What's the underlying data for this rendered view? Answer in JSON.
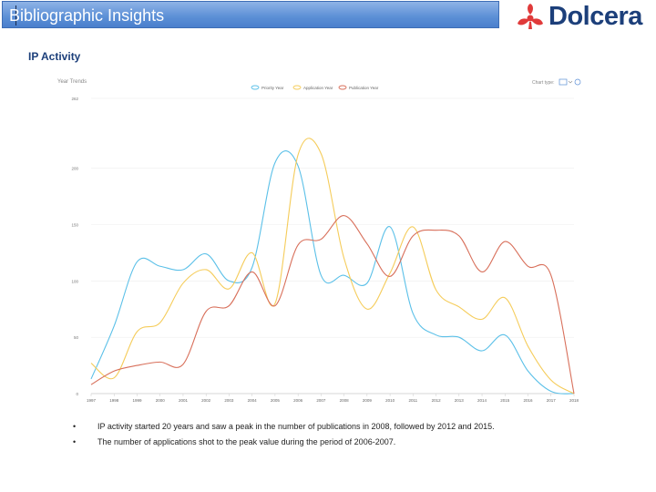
{
  "header": {
    "title": "Bibliographic Insights"
  },
  "logo": {
    "word": "Dolcera",
    "icon": "dolcera-logo-icon",
    "color": "#e03a3a"
  },
  "section": {
    "title": "IP Activity"
  },
  "chart_data": {
    "type": "line",
    "title": "Year Trends",
    "chart_type_label": "Chart type:",
    "x": [
      "1997",
      "1998",
      "1999",
      "2000",
      "2001",
      "2002",
      "2003",
      "2004",
      "2005",
      "2006",
      "2007",
      "2008",
      "2009",
      "2010",
      "2011",
      "2012",
      "2013",
      "2014",
      "2015",
      "2016",
      "2017",
      "2018"
    ],
    "ylim": [
      0,
      262
    ],
    "yticks": [
      0,
      50,
      100,
      150,
      200,
      262
    ],
    "grid": true,
    "legend_placement": "top-center",
    "series": [
      {
        "name": "Priority Year",
        "color": "#5bc0e8",
        "values": [
          13,
          60,
          117,
          113,
          110,
          124,
          100,
          112,
          205,
          202,
          105,
          105,
          98,
          148,
          71,
          52,
          50,
          38,
          52,
          20,
          2,
          0
        ]
      },
      {
        "name": "Application Year",
        "color": "#f5cc5a",
        "values": [
          27,
          14,
          55,
          63,
          98,
          110,
          93,
          125,
          80,
          212,
          213,
          120,
          75,
          107,
          148,
          92,
          77,
          66,
          85,
          42,
          12,
          0
        ]
      },
      {
        "name": "Publication Year",
        "color": "#d86f5a",
        "values": [
          8,
          20,
          25,
          28,
          26,
          73,
          78,
          108,
          78,
          132,
          137,
          158,
          133,
          104,
          140,
          145,
          140,
          108,
          135,
          113,
          105,
          0
        ]
      }
    ]
  },
  "notes": [
    "IP activity started 20 years and saw a peak in the number of publications in 2008, followed by 2012 and 2015.",
    "The number of applications shot to the peak value during the period of 2006-2007."
  ],
  "bullet_char": "•"
}
